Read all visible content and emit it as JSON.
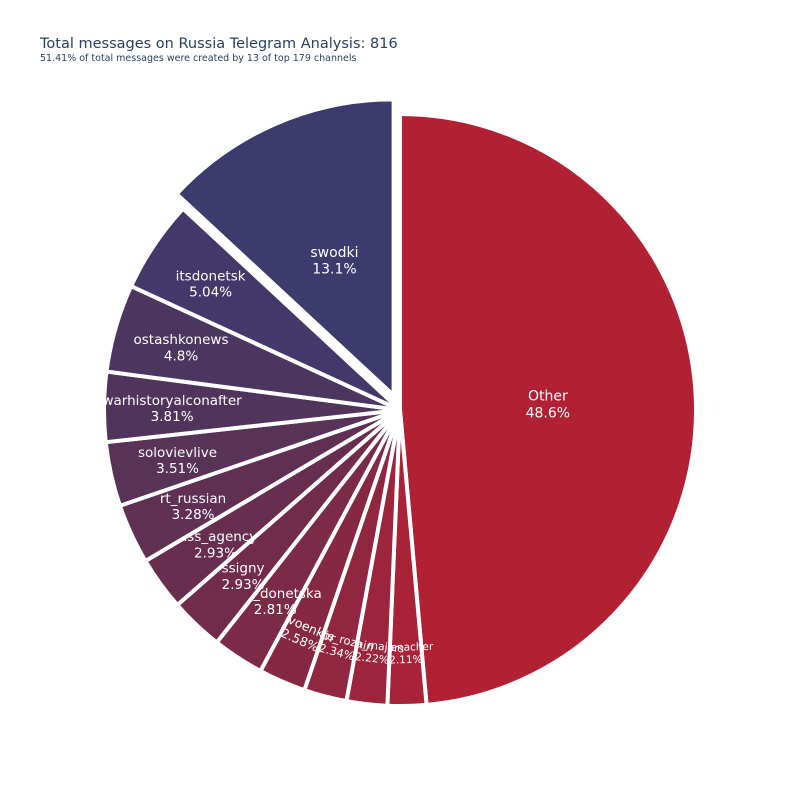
{
  "chart_data": {
    "type": "pie",
    "title": "Total messages on Russia Telegram Analysis: 816",
    "subtitle": "51.41% of total messages were created by 13 of top 179 channels",
    "slices": [
      {
        "label": "Other",
        "percent_label": "48.6%",
        "value": 48.6,
        "color": "#b22034"
      },
      {
        "label": "voenacher",
        "percent_label": "2.11%",
        "value": 2.11,
        "color": "#a82238"
      },
      {
        "label": "dva_majors",
        "percent_label": "2.22%",
        "value": 2.22,
        "color": "#9c243c"
      },
      {
        "label": "boris_rozhin",
        "percent_label": "2.34%",
        "value": 2.34,
        "color": "#912640"
      },
      {
        "label": "rvvoenkor",
        "percent_label": "2.58%",
        "value": 2.58,
        "color": "#862844"
      },
      {
        "label": "chp_donetska",
        "percent_label": "2.81%",
        "value": 2.81,
        "color": "#7b2a48"
      },
      {
        "label": "ssigny",
        "percent_label": "2.93%",
        "value": 2.93,
        "color": "#712c4c"
      },
      {
        "label": "tass_agency",
        "percent_label": "2.93%",
        "value": 2.93,
        "color": "#682e50"
      },
      {
        "label": "rt_russian",
        "percent_label": "3.28%",
        "value": 3.28,
        "color": "#603054"
      },
      {
        "label": "solovievlive",
        "percent_label": "3.51%",
        "value": 3.51,
        "color": "#583257"
      },
      {
        "label": "warhistoryalconafter",
        "percent_label": "3.81%",
        "value": 3.81,
        "color": "#51345b"
      },
      {
        "label": "ostashkonews",
        "percent_label": "4.8%",
        "value": 4.8,
        "color": "#4a365f"
      },
      {
        "label": "itsdonetsk",
        "percent_label": "5.04%",
        "value": 5.04,
        "color": "#44376a"
      },
      {
        "label": "swodki",
        "percent_label": "13.1%",
        "value": 13.1,
        "color": "#3d3a6d"
      }
    ],
    "pulled_slice": "swodki",
    "legend": "none"
  }
}
